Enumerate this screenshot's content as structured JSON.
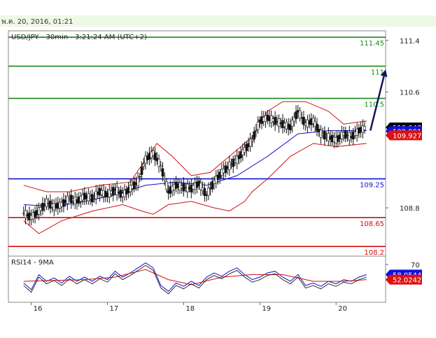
{
  "header": {
    "timestamp": "พ.ค. 20, 2016, 01:21"
  },
  "chart_data": {
    "type": "candlestick",
    "title": "USD/JPY - 30min - 3:21:24 AM (UTC+2)",
    "ylim": [
      108.05,
      111.55
    ],
    "y_ticks": [
      {
        "label": "111.4",
        "value": 111.4
      },
      {
        "label": "110.6",
        "value": 110.6
      },
      {
        "label": "108.8",
        "value": 108.8
      }
    ],
    "x_ticks": [
      {
        "label": "16",
        "x": 0.1
      },
      {
        "label": "17",
        "x": 1.1
      },
      {
        "label": "18",
        "x": 2.1
      },
      {
        "label": "19",
        "x": 3.1
      },
      {
        "label": "20",
        "x": 4.1
      }
    ],
    "xlim": [
      -0.2,
      4.75
    ],
    "levels": [
      {
        "label": "111.45",
        "value": 111.45,
        "color": "#1a8a1a",
        "kind": "resistance"
      },
      {
        "label": "111",
        "value": 111.0,
        "color": "#1a8a1a",
        "kind": "resistance"
      },
      {
        "label": "110.5",
        "value": 110.5,
        "color": "#1a8a1a",
        "kind": "resistance"
      },
      {
        "label": "109.25",
        "value": 109.25,
        "color": "#1010cc",
        "kind": "pivot"
      },
      {
        "label": "108.65",
        "value": 108.65,
        "color": "#d01010",
        "kind": "support"
      },
      {
        "label": "108.2",
        "value": 108.2,
        "color": "#d01010",
        "kind": "support"
      }
    ],
    "price_tags": [
      {
        "label": "110.048",
        "value": 110.048,
        "bg": "#000000",
        "fg": "#ffffff"
      },
      {
        "label": "109.991",
        "value": 109.991,
        "bg": "#1010dd",
        "fg": "#ffffff"
      },
      {
        "label": "109.927",
        "value": 109.927,
        "bg": "#dd1010",
        "fg": "#ffffff"
      }
    ],
    "close_series": [
      [
        0.0,
        108.72
      ],
      [
        0.1,
        108.65
      ],
      [
        0.2,
        108.75
      ],
      [
        0.3,
        108.88
      ],
      [
        0.4,
        108.82
      ],
      [
        0.5,
        108.85
      ],
      [
        0.6,
        108.95
      ],
      [
        0.7,
        108.9
      ],
      [
        0.8,
        108.98
      ],
      [
        0.9,
        108.95
      ],
      [
        1.0,
        109.05
      ],
      [
        1.1,
        109.0
      ],
      [
        1.2,
        109.08
      ],
      [
        1.3,
        109.0
      ],
      [
        1.4,
        109.1
      ],
      [
        1.5,
        109.2
      ],
      [
        1.6,
        109.55
      ],
      [
        1.7,
        109.65
      ],
      [
        1.8,
        109.45
      ],
      [
        1.9,
        109.05
      ],
      [
        2.0,
        109.15
      ],
      [
        2.1,
        109.12
      ],
      [
        2.2,
        109.1
      ],
      [
        2.3,
        109.18
      ],
      [
        2.4,
        109.0
      ],
      [
        2.5,
        109.2
      ],
      [
        2.6,
        109.35
      ],
      [
        2.7,
        109.45
      ],
      [
        2.8,
        109.55
      ],
      [
        2.9,
        109.7
      ],
      [
        3.0,
        109.85
      ],
      [
        3.1,
        110.15
      ],
      [
        3.2,
        110.2
      ],
      [
        3.3,
        110.15
      ],
      [
        3.4,
        110.1
      ],
      [
        3.5,
        110.05
      ],
      [
        3.6,
        110.3
      ],
      [
        3.7,
        110.1
      ],
      [
        3.8,
        110.15
      ],
      [
        3.9,
        109.95
      ],
      [
        4.0,
        109.9
      ],
      [
        4.1,
        109.85
      ],
      [
        4.2,
        109.95
      ],
      [
        4.3,
        109.9
      ],
      [
        4.4,
        110.0
      ],
      [
        4.5,
        110.05
      ]
    ],
    "ma_series": [
      [
        0.0,
        108.85
      ],
      [
        0.4,
        108.82
      ],
      [
        0.8,
        108.9
      ],
      [
        1.2,
        109.0
      ],
      [
        1.6,
        109.15
      ],
      [
        2.0,
        109.2
      ],
      [
        2.4,
        109.15
      ],
      [
        2.8,
        109.3
      ],
      [
        3.2,
        109.6
      ],
      [
        3.6,
        109.95
      ],
      [
        4.0,
        110.0
      ],
      [
        4.5,
        110.0
      ]
    ],
    "bands_upper": [
      [
        0.0,
        109.15
      ],
      [
        0.3,
        109.05
      ],
      [
        0.6,
        109.05
      ],
      [
        1.0,
        109.15
      ],
      [
        1.4,
        109.2
      ],
      [
        1.6,
        109.55
      ],
      [
        1.75,
        109.8
      ],
      [
        1.95,
        109.6
      ],
      [
        2.2,
        109.3
      ],
      [
        2.45,
        109.35
      ],
      [
        2.7,
        109.6
      ],
      [
        3.0,
        109.9
      ],
      [
        3.2,
        110.3
      ],
      [
        3.4,
        110.45
      ],
      [
        3.7,
        110.45
      ],
      [
        4.0,
        110.3
      ],
      [
        4.2,
        110.1
      ],
      [
        4.5,
        110.15
      ]
    ],
    "bands_lower": [
      [
        0.0,
        108.6
      ],
      [
        0.2,
        108.4
      ],
      [
        0.5,
        108.6
      ],
      [
        0.9,
        108.75
      ],
      [
        1.3,
        108.85
      ],
      [
        1.55,
        108.75
      ],
      [
        1.7,
        108.7
      ],
      [
        1.9,
        108.85
      ],
      [
        2.2,
        108.9
      ],
      [
        2.5,
        108.8
      ],
      [
        2.7,
        108.75
      ],
      [
        2.9,
        108.9
      ],
      [
        3.0,
        109.05
      ],
      [
        3.2,
        109.25
      ],
      [
        3.5,
        109.6
      ],
      [
        3.8,
        109.8
      ],
      [
        4.1,
        109.75
      ],
      [
        4.5,
        109.8
      ]
    ],
    "forecast_arrow": {
      "from": [
        4.55,
        110.0
      ],
      "to": [
        4.75,
        110.95
      ]
    },
    "rsi": {
      "label": "RSI14 - 9MA",
      "ylim": [
        25,
        80
      ],
      "tick": {
        "label": "70",
        "value": 70
      },
      "tags": [
        {
          "label": "58.0544",
          "value": 58.0544,
          "bg": "#1010dd",
          "fg": "#ffffff"
        },
        {
          "label": "52.0242",
          "value": 52.0242,
          "bg": "#dd1010",
          "fg": "#ffffff"
        }
      ],
      "rsi_series": [
        [
          0.0,
          48
        ],
        [
          0.1,
          40
        ],
        [
          0.2,
          58
        ],
        [
          0.3,
          50
        ],
        [
          0.4,
          54
        ],
        [
          0.5,
          48
        ],
        [
          0.6,
          56
        ],
        [
          0.7,
          50
        ],
        [
          0.8,
          55
        ],
        [
          0.9,
          50
        ],
        [
          1.0,
          56
        ],
        [
          1.1,
          52
        ],
        [
          1.2,
          62
        ],
        [
          1.3,
          55
        ],
        [
          1.4,
          60
        ],
        [
          1.5,
          66
        ],
        [
          1.6,
          72
        ],
        [
          1.7,
          66
        ],
        [
          1.8,
          45
        ],
        [
          1.9,
          38
        ],
        [
          2.0,
          48
        ],
        [
          2.1,
          44
        ],
        [
          2.2,
          50
        ],
        [
          2.3,
          45
        ],
        [
          2.4,
          55
        ],
        [
          2.5,
          60
        ],
        [
          2.6,
          56
        ],
        [
          2.7,
          62
        ],
        [
          2.8,
          66
        ],
        [
          2.9,
          58
        ],
        [
          3.0,
          52
        ],
        [
          3.1,
          55
        ],
        [
          3.2,
          60
        ],
        [
          3.3,
          62
        ],
        [
          3.4,
          55
        ],
        [
          3.5,
          50
        ],
        [
          3.6,
          58
        ],
        [
          3.7,
          45
        ],
        [
          3.8,
          48
        ],
        [
          3.9,
          44
        ],
        [
          4.0,
          50
        ],
        [
          4.1,
          47
        ],
        [
          4.2,
          52
        ],
        [
          4.3,
          50
        ],
        [
          4.4,
          55
        ],
        [
          4.5,
          58
        ]
      ],
      "ma_series": [
        [
          0.0,
          50
        ],
        [
          0.4,
          51
        ],
        [
          0.8,
          52
        ],
        [
          1.2,
          55
        ],
        [
          1.6,
          64
        ],
        [
          1.9,
          52
        ],
        [
          2.2,
          46
        ],
        [
          2.6,
          55
        ],
        [
          3.0,
          58
        ],
        [
          3.4,
          58
        ],
        [
          3.8,
          50
        ],
        [
          4.2,
          50
        ],
        [
          4.5,
          52
        ]
      ]
    }
  }
}
